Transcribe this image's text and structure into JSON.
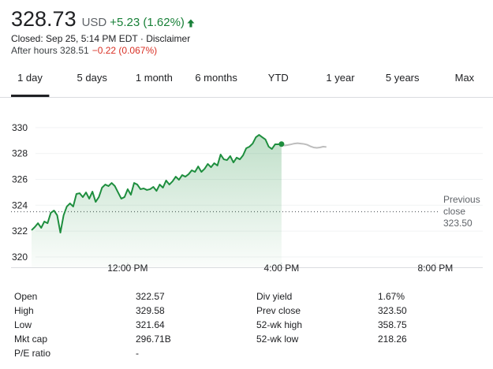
{
  "header": {
    "price": "328.73",
    "currency": "USD",
    "change": "+5.23 (1.62%)",
    "closed": "Closed: Sep 25, 5:14 PM EDT · Disclaimer",
    "after_hours": "After hours 328.51",
    "after_hours_change": "−0.22 (0.067%)"
  },
  "tabs": {
    "items": [
      "1 day",
      "5 days",
      "1 month",
      "6 months",
      "YTD",
      "1 year",
      "5 years",
      "Max"
    ],
    "selected": 0
  },
  "chart_data": {
    "type": "line",
    "xlim": [
      538,
      1274
    ],
    "xticks": [
      {
        "value": 720,
        "label": "12:00 PM"
      },
      {
        "value": 960,
        "label": "4:00 PM"
      },
      {
        "value": 1200,
        "label": "8:00 PM"
      }
    ],
    "ylim": [
      319.2,
      331
    ],
    "yticks": [
      320,
      322,
      324,
      326,
      328,
      330
    ],
    "grid": true,
    "previous_close": {
      "value": 323.5,
      "label": "323.50"
    },
    "previous_close_label": "Previous close",
    "series": [
      {
        "color": "#1e8e3e",
        "area": true,
        "x": [
          570,
          575,
          580,
          585,
          590,
          595,
          600,
          605,
          610,
          615,
          620,
          625,
          630,
          635,
          640,
          645,
          650,
          655,
          660,
          665,
          670,
          675,
          680,
          685,
          690,
          695,
          700,
          705,
          710,
          715,
          720,
          725,
          730,
          735,
          740,
          745,
          750,
          755,
          760,
          765,
          770,
          775,
          780,
          785,
          790,
          795,
          800,
          805,
          810,
          815,
          820,
          825,
          830,
          835,
          840,
          845,
          850,
          855,
          860,
          865,
          870,
          875,
          880,
          885,
          890,
          895,
          900,
          905,
          910,
          915,
          920,
          925,
          930,
          935,
          940,
          945,
          950,
          955,
          960
        ],
        "values": [
          322.07,
          322.31,
          322.61,
          322.25,
          322.74,
          322.61,
          323.41,
          323.59,
          323.22,
          321.88,
          323.22,
          323.9,
          324.14,
          323.9,
          324.87,
          324.93,
          324.63,
          324.99,
          324.51,
          325.05,
          324.26,
          324.63,
          325.36,
          325.6,
          325.48,
          325.72,
          325.48,
          324.99,
          324.51,
          324.63,
          325.24,
          324.81,
          325.72,
          325.6,
          325.24,
          325.3,
          325.18,
          325.24,
          325.42,
          325.11,
          325.6,
          325.36,
          325.91,
          325.6,
          325.85,
          326.21,
          325.97,
          326.33,
          326.21,
          326.4,
          326.7,
          326.58,
          327,
          326.58,
          326.82,
          327.19,
          326.94,
          327.25,
          327.07,
          327.92,
          327.55,
          327.49,
          327.8,
          327.31,
          327.68,
          327.55,
          327.86,
          328.41,
          328.53,
          328.77,
          329.26,
          329.44,
          329.26,
          329.08,
          328.53,
          328.35,
          328.71,
          328.71,
          328.73
        ]
      },
      {
        "color": "#bdbdbd",
        "area": false,
        "x": [
          960,
          965,
          970,
          975,
          980,
          985,
          990,
          995,
          1000,
          1005,
          1010,
          1015,
          1020,
          1025,
          1030
        ],
        "values": [
          328.73,
          328.62,
          328.66,
          328.71,
          328.77,
          328.8,
          328.77,
          328.74,
          328.68,
          328.56,
          328.47,
          328.44,
          328.47,
          328.53,
          328.51
        ]
      }
    ]
  },
  "stats": {
    "rows": [
      [
        "Open",
        "322.57",
        "Div yield",
        "1.67%"
      ],
      [
        "High",
        "329.58",
        "Prev close",
        "323.50"
      ],
      [
        "Low",
        "321.64",
        "52-wk high",
        "358.75"
      ],
      [
        "Mkt cap",
        "296.71B",
        "52-wk low",
        "218.26"
      ],
      [
        "P/E ratio",
        "-"
      ]
    ]
  }
}
